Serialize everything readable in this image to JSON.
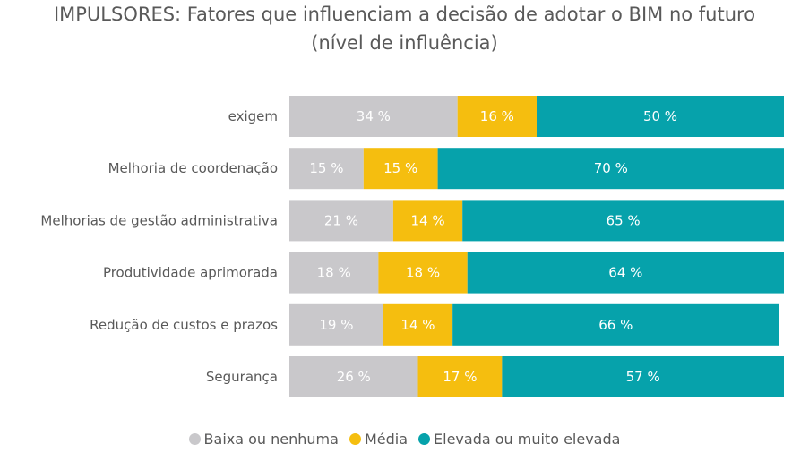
{
  "title_line1": "IMPULSORES: Fatores que influenciam a decisão de adotar o BIM no futuro",
  "title_line2": "(nível de influência)",
  "colors": {
    "baixa": "#c9c8cb",
    "media": "#f5be0f",
    "elevada": "#06a2ab"
  },
  "chart_data": {
    "type": "bar",
    "orientation": "horizontal",
    "stacked": true,
    "percent": true,
    "categories": [
      "exigem",
      "Melhoria de coordenação",
      "Melhorias de gestão administrativa",
      "Produtividade aprimorada",
      "Redução de custos e prazos",
      "Segurança"
    ],
    "series": [
      {
        "name": "Baixa ou nenhuma",
        "values": [
          34,
          15,
          21,
          18,
          19,
          26
        ],
        "labels": [
          "34 %",
          "15 %",
          "21 %",
          "18 %",
          "19 %",
          "26 %"
        ],
        "color": "#c9c8cb"
      },
      {
        "name": "Média",
        "values": [
          16,
          15,
          14,
          18,
          14,
          17
        ],
        "labels": [
          "16 %",
          "15 %",
          "14 %",
          "18 %",
          "14 %",
          "17 %"
        ],
        "color": "#f5be0f"
      },
      {
        "name": "Elevada ou muito elevada",
        "values": [
          50,
          70,
          65,
          64,
          66,
          57
        ],
        "labels": [
          "50 %",
          "70 %",
          "65 %",
          "64 %",
          "66 %",
          "57 %"
        ],
        "color": "#06a2ab"
      }
    ],
    "xlim": [
      0,
      100
    ],
    "grid": false,
    "legend_position": "bottom"
  }
}
